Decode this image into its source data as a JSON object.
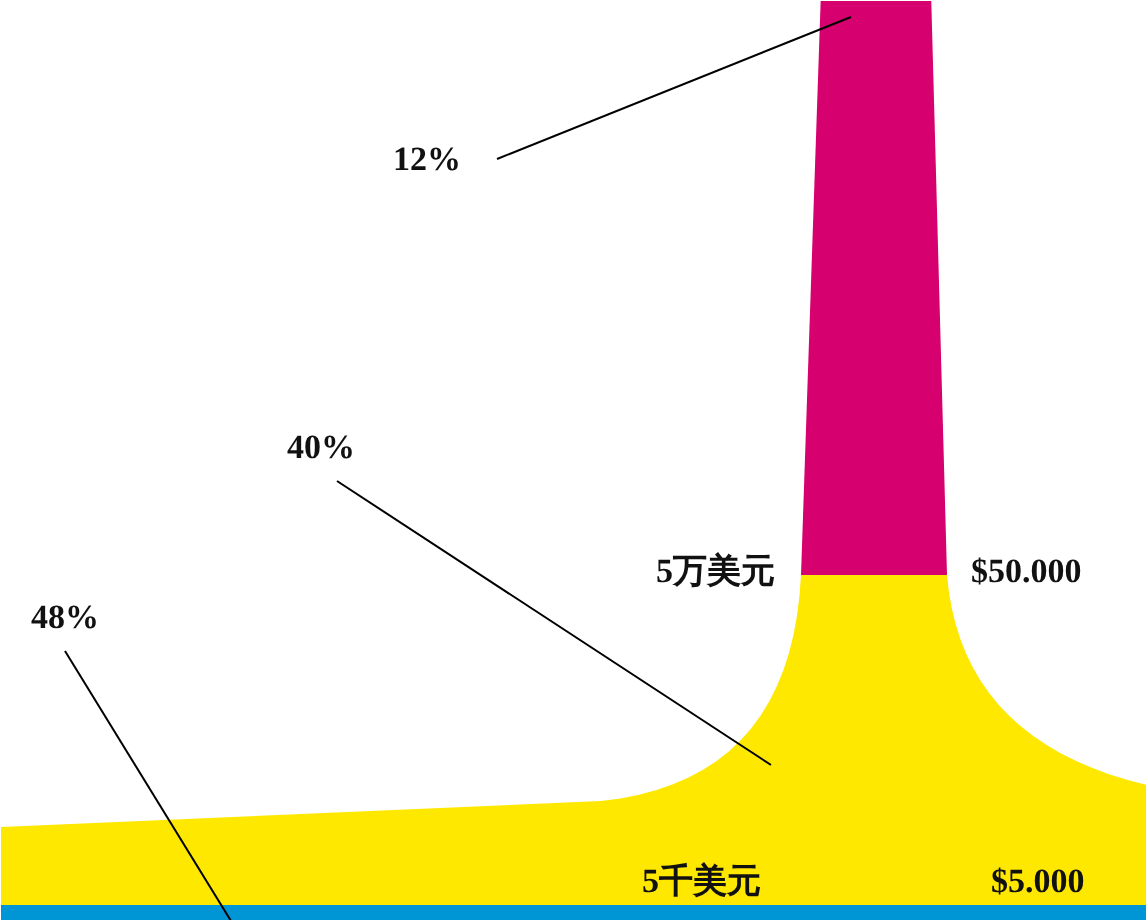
{
  "chart_data": {
    "type": "other",
    "categories": [
      null,
      null,
      null
    ],
    "values": [
      12,
      40,
      48
    ],
    "value_labels": [
      "12%",
      "40%",
      "48%"
    ],
    "colors": [
      "#d6006e",
      "#ffe800",
      "#0096d6"
    ],
    "annotations": [
      "5万美元",
      "$50.000",
      "5千美元",
      "$5.000"
    ]
  }
}
